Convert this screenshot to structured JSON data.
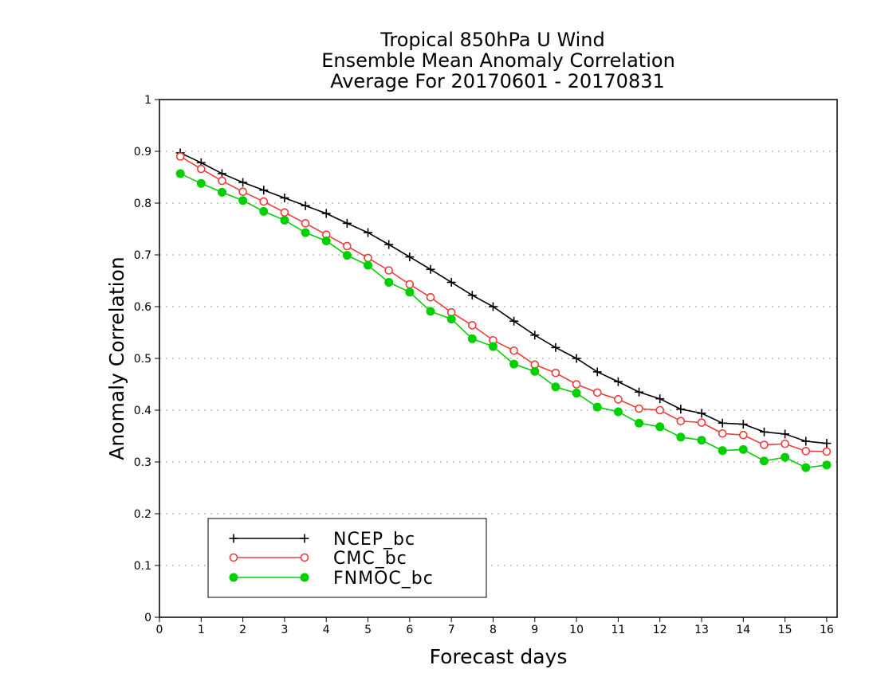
{
  "chart_data": {
    "type": "line",
    "title_lines": [
      "Tropical 850hPa U Wind",
      "Ensemble Mean Anomaly Correlation",
      "Average For 20170601 - 20170831"
    ],
    "xlabel": "Forecast days",
    "ylabel": "Anomaly Correlation",
    "xlim": [
      0,
      16.25
    ],
    "ylim": [
      0,
      1
    ],
    "x_ticks": [
      0,
      1,
      2,
      3,
      4,
      5,
      6,
      7,
      8,
      9,
      10,
      11,
      12,
      13,
      14,
      15,
      16
    ],
    "x_tick_labels": [
      "0",
      "1",
      "2",
      "3",
      "4",
      "5",
      "6",
      "7",
      "8",
      "9",
      "10",
      "11",
      "12",
      "13",
      "14",
      "15",
      "16"
    ],
    "y_ticks": [
      0,
      0.1,
      0.2,
      0.3,
      0.4,
      0.5,
      0.6,
      0.7,
      0.8,
      0.9,
      1
    ],
    "y_tick_labels": [
      "0",
      "0.1",
      "0.2",
      "0.3",
      "0.4",
      "0.5",
      "0.6",
      "0.7",
      "0.8",
      "0.9",
      "1"
    ],
    "grid": "horizontal dotted",
    "legend_position": "bottom-left",
    "x": [
      0.5,
      1,
      1.5,
      2,
      2.5,
      3,
      3.5,
      4,
      4.5,
      5,
      5.5,
      6,
      6.5,
      7,
      7.5,
      8,
      8.5,
      9,
      9.5,
      10,
      10.5,
      11,
      11.5,
      12,
      12.5,
      13,
      13.5,
      14,
      14.5,
      15,
      15.5,
      16
    ],
    "series": [
      {
        "name": "NCEP_bc",
        "color": "#000000",
        "marker": "plus",
        "values": [
          0.897,
          0.878,
          0.857,
          0.84,
          0.825,
          0.81,
          0.795,
          0.78,
          0.761,
          0.743,
          0.72,
          0.696,
          0.672,
          0.647,
          0.622,
          0.6,
          0.572,
          0.545,
          0.521,
          0.5,
          0.474,
          0.455,
          0.435,
          0.422,
          0.402,
          0.394,
          0.375,
          0.373,
          0.358,
          0.354,
          0.34,
          0.336
        ]
      },
      {
        "name": "CMC_bc",
        "color": "#ee3b3b",
        "marker": "open-circle",
        "values": [
          0.89,
          0.866,
          0.843,
          0.822,
          0.803,
          0.782,
          0.761,
          0.739,
          0.717,
          0.694,
          0.67,
          0.643,
          0.618,
          0.589,
          0.564,
          0.535,
          0.515,
          0.488,
          0.472,
          0.45,
          0.434,
          0.421,
          0.403,
          0.4,
          0.379,
          0.376,
          0.355,
          0.352,
          0.333,
          0.335,
          0.321,
          0.32
        ]
      },
      {
        "name": "FNMOC_bc",
        "color": "#00d000",
        "marker": "filled-circle",
        "values": [
          0.857,
          0.838,
          0.821,
          0.805,
          0.784,
          0.767,
          0.743,
          0.727,
          0.699,
          0.68,
          0.647,
          0.628,
          0.591,
          0.576,
          0.538,
          0.523,
          0.489,
          0.475,
          0.445,
          0.433,
          0.406,
          0.397,
          0.375,
          0.368,
          0.348,
          0.342,
          0.322,
          0.324,
          0.302,
          0.309,
          0.289,
          0.294
        ]
      }
    ]
  }
}
